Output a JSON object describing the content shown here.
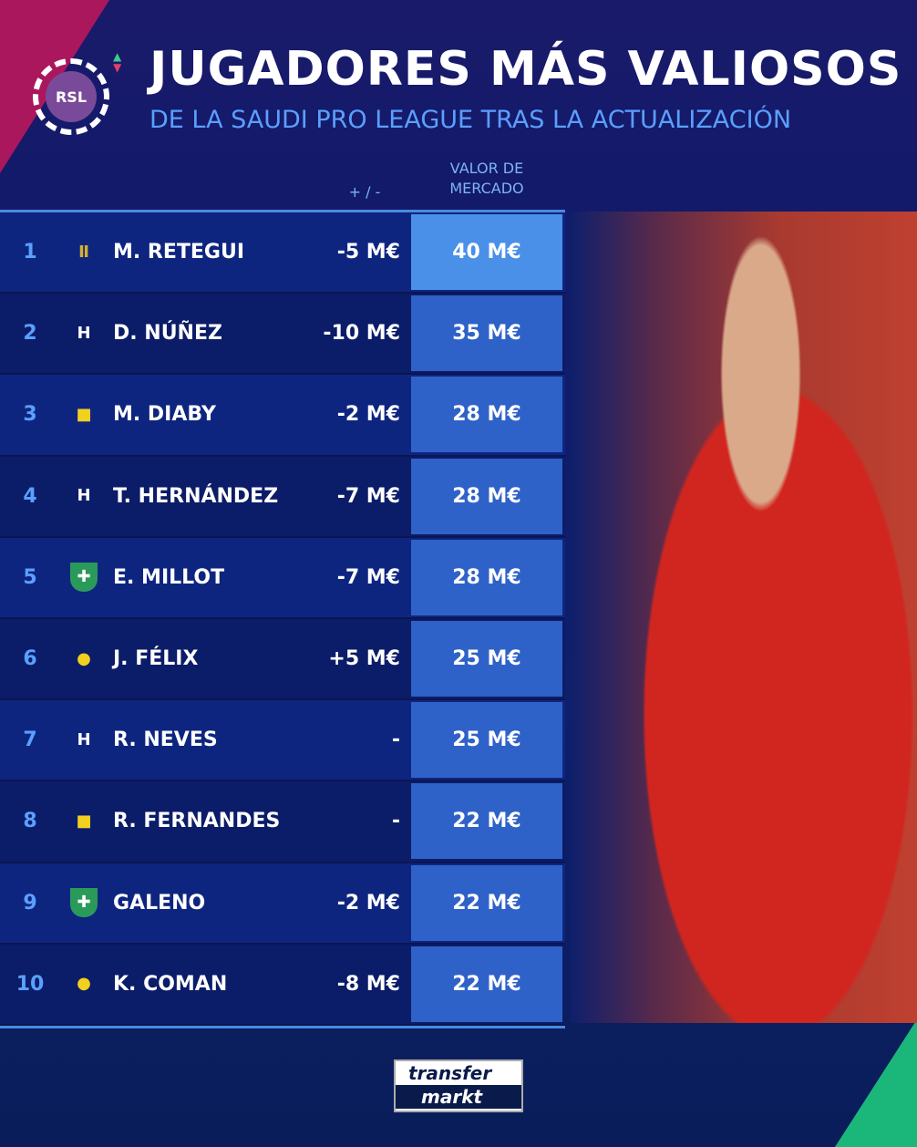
{
  "header": {
    "logo_text": "RSL",
    "title": "JUGADORES MÁS VALIOSOS",
    "subtitle": "DE LA SAUDI PRO LEAGUE TRAS LA ACTUALIZACIÓN"
  },
  "columns": {
    "change": "+ / -",
    "value_line1": "VALOR DE",
    "value_line2": "MERCADO"
  },
  "rows": [
    {
      "rank": "1",
      "club_icon": "al-qadsiah-crest-icon",
      "name": "M. RETEGUI",
      "change": "-5 M€",
      "value": "40 M€"
    },
    {
      "rank": "2",
      "club_icon": "al-hilal-crest-icon",
      "name": "D. NÚÑEZ",
      "change": "-10 M€",
      "value": "35 M€"
    },
    {
      "rank": "3",
      "club_icon": "al-ittihad-crest-icon",
      "name": "M. DIABY",
      "change": "-2 M€",
      "value": "28 M€"
    },
    {
      "rank": "4",
      "club_icon": "al-hilal-crest-icon",
      "name": "T. HERNÁNDEZ",
      "change": "-7 M€",
      "value": "28 M€"
    },
    {
      "rank": "5",
      "club_icon": "al-ahli-crest-icon",
      "name": "E. MILLOT",
      "change": "-7 M€",
      "value": "28 M€"
    },
    {
      "rank": "6",
      "club_icon": "al-nassr-crest-icon",
      "name": "J. FÉLIX",
      "change": "+5 M€",
      "value": "25 M€"
    },
    {
      "rank": "7",
      "club_icon": "al-hilal-crest-icon",
      "name": "R. NEVES",
      "change": "-",
      "value": "25 M€"
    },
    {
      "rank": "8",
      "club_icon": "al-ittihad-crest-icon",
      "name": "R. FERNANDES",
      "change": "-",
      "value": "22 M€"
    },
    {
      "rank": "9",
      "club_icon": "al-ahli-crest-icon",
      "name": "GALENO",
      "change": "-2 M€",
      "value": "22 M€"
    },
    {
      "rank": "10",
      "club_icon": "al-nassr-crest-icon",
      "name": "K. COMAN",
      "change": "-8 M€",
      "value": "22 M€"
    }
  ],
  "footer": {
    "brand_line1": "transfer",
    "brand_line2": "markt"
  },
  "colors": {
    "accent": "#5aa0ff",
    "value_cell": "#2f62c8",
    "top_value_cell": "#4a90e8"
  }
}
